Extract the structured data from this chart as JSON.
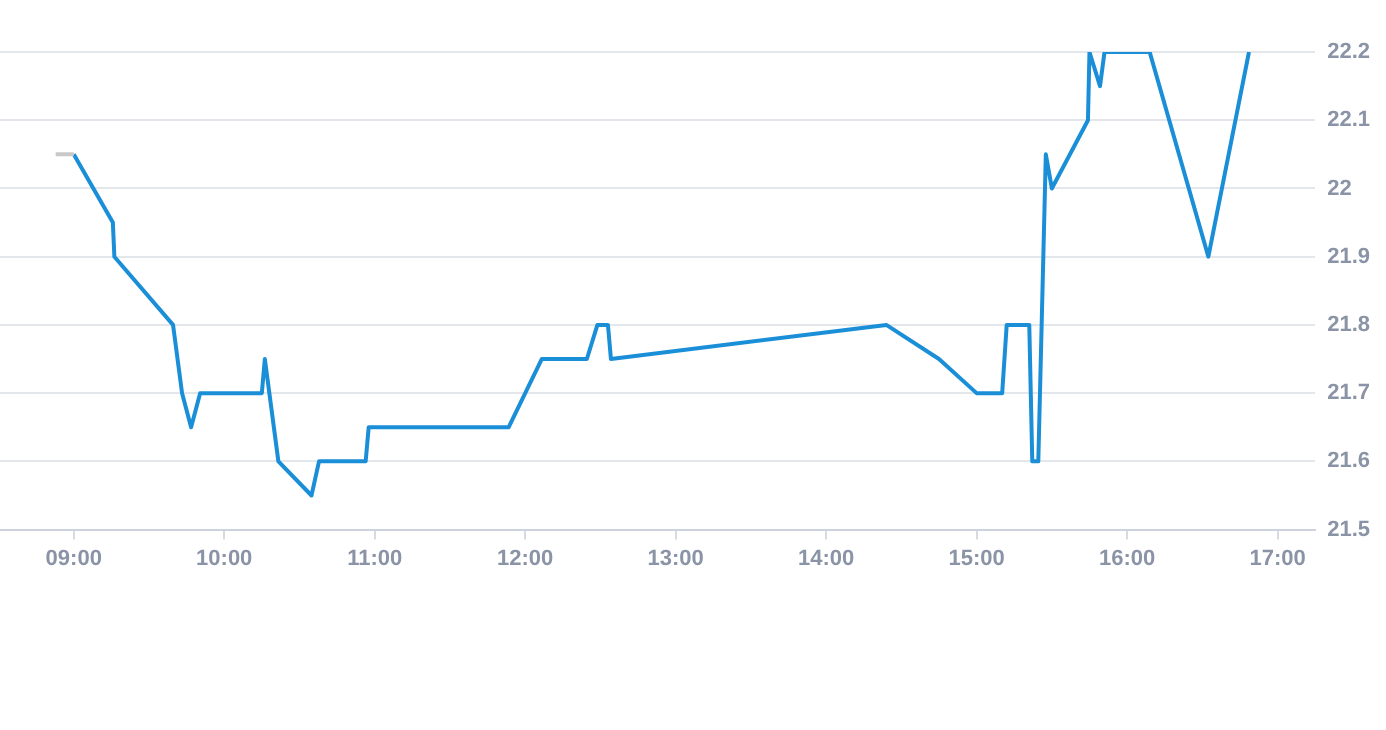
{
  "chart_data": {
    "type": "line",
    "series": [
      {
        "color": "#c8c8c8",
        "x": [
          8.88,
          9.0
        ],
        "values": [
          22.05,
          22.05
        ]
      },
      {
        "color": "#1a8fd8",
        "x": [
          9.0,
          9.26,
          9.27,
          9.66,
          9.72,
          9.78,
          9.84,
          10.25,
          10.27,
          10.36,
          10.58,
          10.63,
          10.94,
          10.96,
          11.89,
          12.11,
          12.41,
          12.48,
          12.55,
          12.57,
          14.4,
          14.75,
          15.0,
          15.17,
          15.2,
          15.35,
          15.37,
          15.41,
          15.46,
          15.5,
          15.74,
          15.75,
          15.82,
          15.85,
          16.15,
          16.54,
          16.81
        ],
        "values": [
          22.05,
          21.95,
          21.9,
          21.8,
          21.7,
          21.65,
          21.7,
          21.7,
          21.75,
          21.6,
          21.55,
          21.6,
          21.6,
          21.65,
          21.65,
          21.75,
          21.75,
          21.8,
          21.8,
          21.75,
          21.8,
          21.75,
          21.7,
          21.7,
          21.8,
          21.8,
          21.6,
          21.6,
          22.05,
          22.0,
          22.1,
          22.2,
          22.15,
          22.2,
          22.2,
          21.9,
          22.2
        ]
      }
    ],
    "xlim": [
      8.51,
      17.25
    ],
    "xticks": [
      {
        "value": 9,
        "label": "09:00"
      },
      {
        "value": 10,
        "label": "10:00"
      },
      {
        "value": 11,
        "label": "11:00"
      },
      {
        "value": 12,
        "label": "12:00"
      },
      {
        "value": 13,
        "label": "13:00"
      },
      {
        "value": 14,
        "label": "14:00"
      },
      {
        "value": 15,
        "label": "15:00"
      },
      {
        "value": 16,
        "label": "16:00"
      },
      {
        "value": 17,
        "label": "17:00"
      }
    ],
    "ylim": [
      21.5,
      22.2
    ],
    "yticks": [
      21.5,
      21.6,
      21.7,
      21.8,
      21.9,
      22,
      22.1,
      22.2
    ],
    "grid": "y",
    "marker": "none",
    "line_style": "solid",
    "legend": false
  }
}
